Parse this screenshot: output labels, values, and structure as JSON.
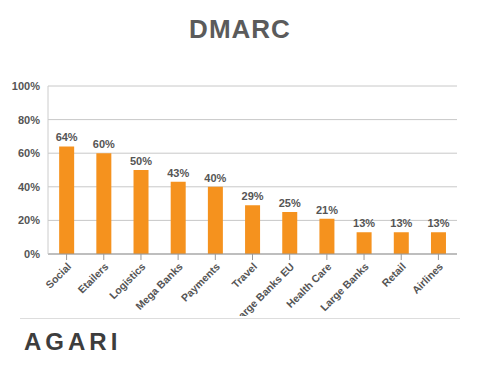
{
  "chart_data": {
    "type": "bar",
    "title": "DMARC",
    "categories": [
      "Social",
      "Etailers",
      "Logistics",
      "Mega Banks",
      "Payments",
      "Travel",
      "Large Banks EU",
      "Health Care",
      "Large Banks",
      "Retail",
      "Airlines"
    ],
    "values": [
      64,
      60,
      50,
      43,
      40,
      29,
      25,
      21,
      13,
      13,
      13
    ],
    "value_labels": [
      "64%",
      "60%",
      "50%",
      "43%",
      "40%",
      "29%",
      "25%",
      "21%",
      "13%",
      "13%",
      "13%"
    ],
    "color": "#f5921e",
    "ylim": [
      0,
      100
    ],
    "yticks": [
      {
        "value": 0,
        "label": "0%"
      },
      {
        "value": 20,
        "label": "20%"
      },
      {
        "value": 40,
        "label": "40%"
      },
      {
        "value": 60,
        "label": "60%"
      },
      {
        "value": 80,
        "label": "80%"
      },
      {
        "value": 100,
        "label": "100%"
      }
    ],
    "grid": true,
    "data_labels": true
  },
  "logo": "AGARI"
}
